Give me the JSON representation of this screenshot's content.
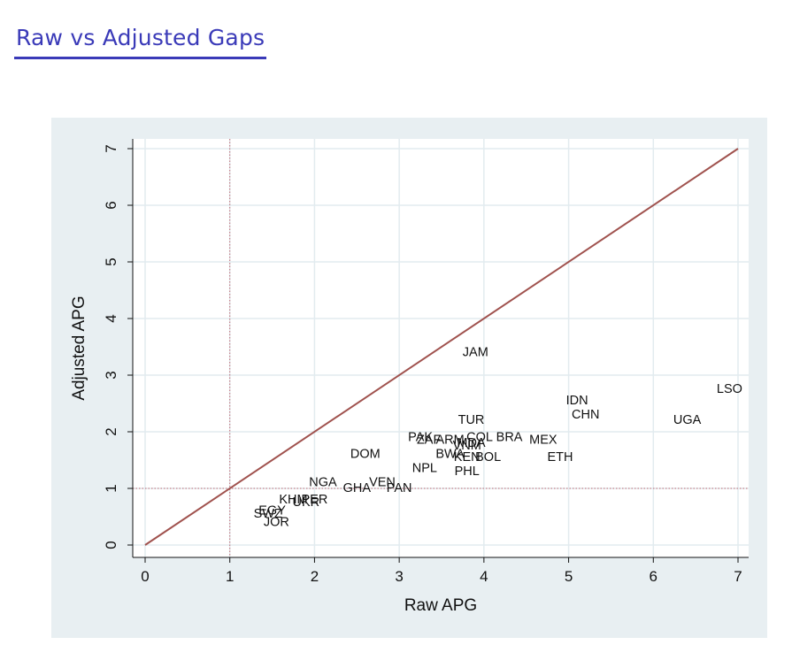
{
  "slide": {
    "title": "Raw vs Adjusted Gaps"
  },
  "colors": {
    "title": "#3a3ab8",
    "panel_bg": "#e8eff2",
    "plot_bg": "#ffffff",
    "grid": "#e2ebef",
    "diagonal": "#a0524e",
    "ref_lines": "#c26a75",
    "text": "#111111"
  },
  "chart_data": {
    "type": "scatter",
    "title": "",
    "xlabel": "Raw APG",
    "ylabel": "Adjusted APG",
    "xlim": [
      0,
      7
    ],
    "ylim": [
      0,
      7
    ],
    "xticks": [
      "0",
      "1",
      "2",
      "3",
      "4",
      "5",
      "6",
      "7"
    ],
    "yticks": [
      "0",
      "1",
      "2",
      "3",
      "4",
      "5",
      "6",
      "7"
    ],
    "grid": true,
    "reference_lines": {
      "x": 1,
      "y": 1,
      "diagonal": "y = x"
    },
    "marker": "country-code labels",
    "points": [
      {
        "label": "JAM",
        "x": 3.9,
        "y": 3.4
      },
      {
        "label": "LSO",
        "x": 6.9,
        "y": 2.75
      },
      {
        "label": "IDN",
        "x": 5.1,
        "y": 2.55
      },
      {
        "label": "CHN",
        "x": 5.2,
        "y": 2.3
      },
      {
        "label": "UGA",
        "x": 6.4,
        "y": 2.2
      },
      {
        "label": "TUR",
        "x": 3.85,
        "y": 2.2
      },
      {
        "label": "PAK",
        "x": 3.25,
        "y": 1.9
      },
      {
        "label": "ZAF",
        "x": 3.35,
        "y": 1.85
      },
      {
        "label": "ARM",
        "x": 3.6,
        "y": 1.85
      },
      {
        "label": "MDA",
        "x": 3.85,
        "y": 1.8
      },
      {
        "label": "COL",
        "x": 3.95,
        "y": 1.9
      },
      {
        "label": "BRA",
        "x": 4.3,
        "y": 1.9
      },
      {
        "label": "MEX",
        "x": 4.7,
        "y": 1.85
      },
      {
        "label": "VNM",
        "x": 3.8,
        "y": 1.75
      },
      {
        "label": "BWA",
        "x": 3.6,
        "y": 1.6
      },
      {
        "label": "KEN",
        "x": 3.8,
        "y": 1.55
      },
      {
        "label": "BOL",
        "x": 4.05,
        "y": 1.55
      },
      {
        "label": "ETH",
        "x": 4.9,
        "y": 1.55
      },
      {
        "label": "DOM",
        "x": 2.6,
        "y": 1.6
      },
      {
        "label": "NPL",
        "x": 3.3,
        "y": 1.35
      },
      {
        "label": "PHL",
        "x": 3.8,
        "y": 1.3
      },
      {
        "label": "NGA",
        "x": 2.1,
        "y": 1.1
      },
      {
        "label": "VEN",
        "x": 2.8,
        "y": 1.1
      },
      {
        "label": "GHA",
        "x": 2.5,
        "y": 1.0
      },
      {
        "label": "PAN",
        "x": 3.0,
        "y": 1.0
      },
      {
        "label": "KHM",
        "x": 1.75,
        "y": 0.8
      },
      {
        "label": "PER",
        "x": 2.0,
        "y": 0.8
      },
      {
        "label": "UKR",
        "x": 1.9,
        "y": 0.75
      },
      {
        "label": "EGY",
        "x": 1.5,
        "y": 0.6
      },
      {
        "label": "SWZ",
        "x": 1.45,
        "y": 0.55
      },
      {
        "label": "JOR",
        "x": 1.55,
        "y": 0.4
      }
    ]
  }
}
